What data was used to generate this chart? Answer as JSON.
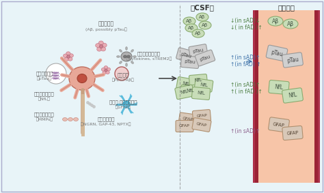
{
  "bg_color": "#e8f4f8",
  "title_csf": "在CSF中",
  "title_blood": "在血液中",
  "csf_bg": "#ffffff",
  "blood_vessel_fill": "#f7c5a8",
  "blood_vessel_wall": "#9b2335",
  "annotation1_line1": "↓(in sAD)↓",
  "annotation1_line2": "↓( in fAD )↑",
  "annotation1_color": "#4a7c3f",
  "annotation2_line1": "↑(in sAD)↑",
  "annotation2_line2": "↑(in fAD) ↑",
  "annotation2_color": "#3a6fa8",
  "annotation3_line1": "↑(in sAD)↑",
  "annotation3_line2": "↑( in fAD )↑",
  "annotation3_color": "#4a7c3f",
  "annotation4": "↑(in sAD)↑",
  "annotation4_color": "#8b5e8b",
  "ab_color": "#c8ddb8",
  "ab_border": "#8aab70",
  "ptau_color": "#d0d0d0",
  "ptau_border": "#999999",
  "nfl_color": "#c8ddb8",
  "nfl_border": "#8aab70",
  "gfap_color": "#d8c8b8",
  "gfap_border": "#b09070",
  "neuron_body": "#e8a898",
  "neuron_border": "#c07060",
  "neuron_nucleus": "#c05040",
  "axon_color": "#c8a080",
  "spine_color": "#a07850",
  "microglia_color": "#909090",
  "astrocyte_color": "#7cc8e0",
  "arrow_color": "#333333",
  "border_color": "#aaaaaa",
  "label_color": "#555555",
  "label_sub_color": "#777777",
  "dashed_color": "#888888"
}
